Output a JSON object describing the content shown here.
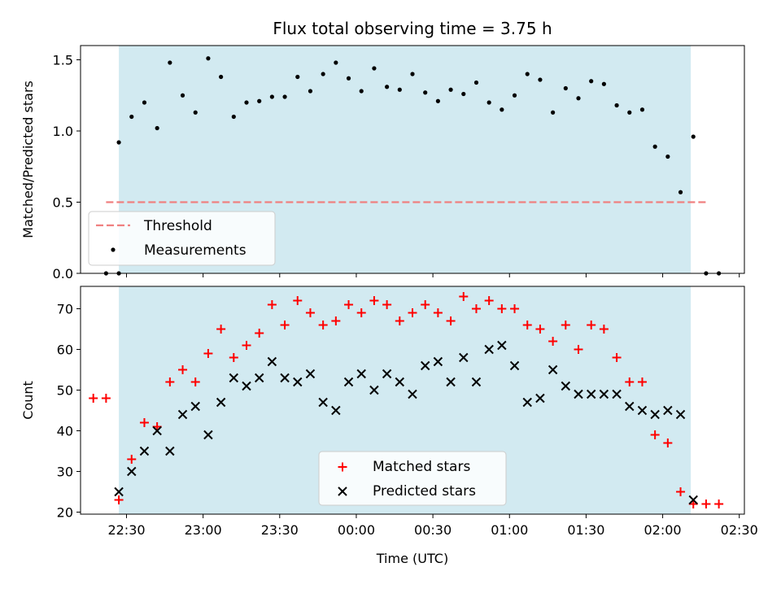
{
  "chart_data": [
    {
      "type": "scatter",
      "title": "Flux total observing time = 3.75 h",
      "ylabel": "Matched/Predicted stars",
      "xlim": [
        "22:12",
        "02:32"
      ],
      "ylim": [
        0,
        1.6
      ],
      "yticks": [
        "0.0",
        "0.5",
        "1.0",
        "1.5"
      ],
      "shaded_interval": [
        "22:27",
        "02:11"
      ],
      "shade_color": "#add8e6",
      "threshold": {
        "name": "Threshold",
        "value": 0.5,
        "from": "22:22",
        "to": "02:17",
        "color": "#f08080"
      },
      "legend_position": "lower left",
      "series": [
        {
          "name": "Measurements",
          "marker": "dot",
          "color": "#000000",
          "points": [
            [
              "22:22",
              0.0
            ],
            [
              "22:27",
              0.0
            ],
            [
              "22:27",
              0.92
            ],
            [
              "22:32",
              1.1
            ],
            [
              "22:37",
              1.2
            ],
            [
              "22:42",
              1.02
            ],
            [
              "22:47",
              1.48
            ],
            [
              "22:52",
              1.25
            ],
            [
              "22:57",
              1.13
            ],
            [
              "23:02",
              1.51
            ],
            [
              "23:07",
              1.38
            ],
            [
              "23:12",
              1.1
            ],
            [
              "23:17",
              1.2
            ],
            [
              "23:22",
              1.21
            ],
            [
              "23:27",
              1.24
            ],
            [
              "23:32",
              1.24
            ],
            [
              "23:37",
              1.38
            ],
            [
              "23:42",
              1.28
            ],
            [
              "23:47",
              1.4
            ],
            [
              "23:52",
              1.48
            ],
            [
              "23:57",
              1.37
            ],
            [
              "00:02",
              1.28
            ],
            [
              "00:07",
              1.44
            ],
            [
              "00:12",
              1.31
            ],
            [
              "00:17",
              1.29
            ],
            [
              "00:22",
              1.4
            ],
            [
              "00:27",
              1.27
            ],
            [
              "00:32",
              1.21
            ],
            [
              "00:37",
              1.29
            ],
            [
              "00:42",
              1.26
            ],
            [
              "00:47",
              1.34
            ],
            [
              "00:52",
              1.2
            ],
            [
              "00:57",
              1.15
            ],
            [
              "01:02",
              1.25
            ],
            [
              "01:07",
              1.4
            ],
            [
              "01:12",
              1.36
            ],
            [
              "01:17",
              1.13
            ],
            [
              "01:22",
              1.3
            ],
            [
              "01:27",
              1.23
            ],
            [
              "01:32",
              1.35
            ],
            [
              "01:37",
              1.33
            ],
            [
              "01:42",
              1.18
            ],
            [
              "01:47",
              1.13
            ],
            [
              "01:52",
              1.15
            ],
            [
              "01:57",
              0.89
            ],
            [
              "02:02",
              0.82
            ],
            [
              "02:07",
              0.57
            ],
            [
              "02:12",
              0.96
            ],
            [
              "02:17",
              0.0
            ],
            [
              "02:22",
              0.0
            ]
          ]
        }
      ]
    },
    {
      "type": "scatter",
      "ylabel": "Count",
      "xlabel": "Time (UTC)",
      "xlim": [
        "22:12",
        "02:32"
      ],
      "xticks": [
        "22:30",
        "23:00",
        "23:30",
        "00:00",
        "00:30",
        "01:00",
        "01:30",
        "02:00",
        "02:30"
      ],
      "ylim": [
        19.5,
        75.5
      ],
      "yticks": [
        "20",
        "30",
        "40",
        "50",
        "60",
        "70"
      ],
      "shaded_interval": [
        "22:27",
        "02:11"
      ],
      "shade_color": "#add8e6",
      "legend_position": "lower center",
      "series": [
        {
          "name": "Matched stars",
          "marker": "plus",
          "color": "#ff0000",
          "points": [
            [
              "22:17",
              48
            ],
            [
              "22:22",
              48
            ],
            [
              "22:27",
              23
            ],
            [
              "22:32",
              33
            ],
            [
              "22:37",
              42
            ],
            [
              "22:42",
              41
            ],
            [
              "22:47",
              52
            ],
            [
              "22:52",
              55
            ],
            [
              "22:57",
              52
            ],
            [
              "23:02",
              59
            ],
            [
              "23:07",
              65
            ],
            [
              "23:12",
              58
            ],
            [
              "23:17",
              61
            ],
            [
              "23:22",
              64
            ],
            [
              "23:27",
              71
            ],
            [
              "23:32",
              66
            ],
            [
              "23:37",
              72
            ],
            [
              "23:42",
              69
            ],
            [
              "23:47",
              66
            ],
            [
              "23:52",
              67
            ],
            [
              "23:57",
              71
            ],
            [
              "00:02",
              69
            ],
            [
              "00:07",
              72
            ],
            [
              "00:12",
              71
            ],
            [
              "00:17",
              67
            ],
            [
              "00:22",
              69
            ],
            [
              "00:27",
              71
            ],
            [
              "00:32",
              69
            ],
            [
              "00:37",
              67
            ],
            [
              "00:42",
              73
            ],
            [
              "00:47",
              70
            ],
            [
              "00:52",
              72
            ],
            [
              "00:57",
              70
            ],
            [
              "01:02",
              70
            ],
            [
              "01:07",
              66
            ],
            [
              "01:12",
              65
            ],
            [
              "01:17",
              62
            ],
            [
              "01:22",
              66
            ],
            [
              "01:27",
              60
            ],
            [
              "01:32",
              66
            ],
            [
              "01:37",
              65
            ],
            [
              "01:42",
              58
            ],
            [
              "01:47",
              52
            ],
            [
              "01:52",
              52
            ],
            [
              "01:57",
              39
            ],
            [
              "02:02",
              37
            ],
            [
              "02:07",
              25
            ],
            [
              "02:12",
              22
            ],
            [
              "02:17",
              22
            ],
            [
              "02:22",
              22
            ]
          ]
        },
        {
          "name": "Predicted stars",
          "marker": "x",
          "color": "#000000",
          "points": [
            [
              "22:27",
              25
            ],
            [
              "22:32",
              30
            ],
            [
              "22:37",
              35
            ],
            [
              "22:42",
              40
            ],
            [
              "22:47",
              35
            ],
            [
              "22:52",
              44
            ],
            [
              "22:57",
              46
            ],
            [
              "23:02",
              39
            ],
            [
              "23:07",
              47
            ],
            [
              "23:12",
              53
            ],
            [
              "23:17",
              51
            ],
            [
              "23:22",
              53
            ],
            [
              "23:27",
              57
            ],
            [
              "23:32",
              53
            ],
            [
              "23:37",
              52
            ],
            [
              "23:42",
              54
            ],
            [
              "23:47",
              47
            ],
            [
              "23:52",
              45
            ],
            [
              "23:57",
              52
            ],
            [
              "00:02",
              54
            ],
            [
              "00:07",
              50
            ],
            [
              "00:12",
              54
            ],
            [
              "00:17",
              52
            ],
            [
              "00:22",
              49
            ],
            [
              "00:27",
              56
            ],
            [
              "00:32",
              57
            ],
            [
              "00:37",
              52
            ],
            [
              "00:42",
              58
            ],
            [
              "00:47",
              52
            ],
            [
              "00:52",
              60
            ],
            [
              "00:57",
              61
            ],
            [
              "01:02",
              56
            ],
            [
              "01:07",
              47
            ],
            [
              "01:12",
              48
            ],
            [
              "01:17",
              55
            ],
            [
              "01:22",
              51
            ],
            [
              "01:27",
              49
            ],
            [
              "01:32",
              49
            ],
            [
              "01:37",
              49
            ],
            [
              "01:42",
              49
            ],
            [
              "01:47",
              46
            ],
            [
              "01:52",
              45
            ],
            [
              "01:57",
              44
            ],
            [
              "02:02",
              45
            ],
            [
              "02:07",
              44
            ],
            [
              "02:12",
              23
            ]
          ]
        }
      ]
    }
  ]
}
